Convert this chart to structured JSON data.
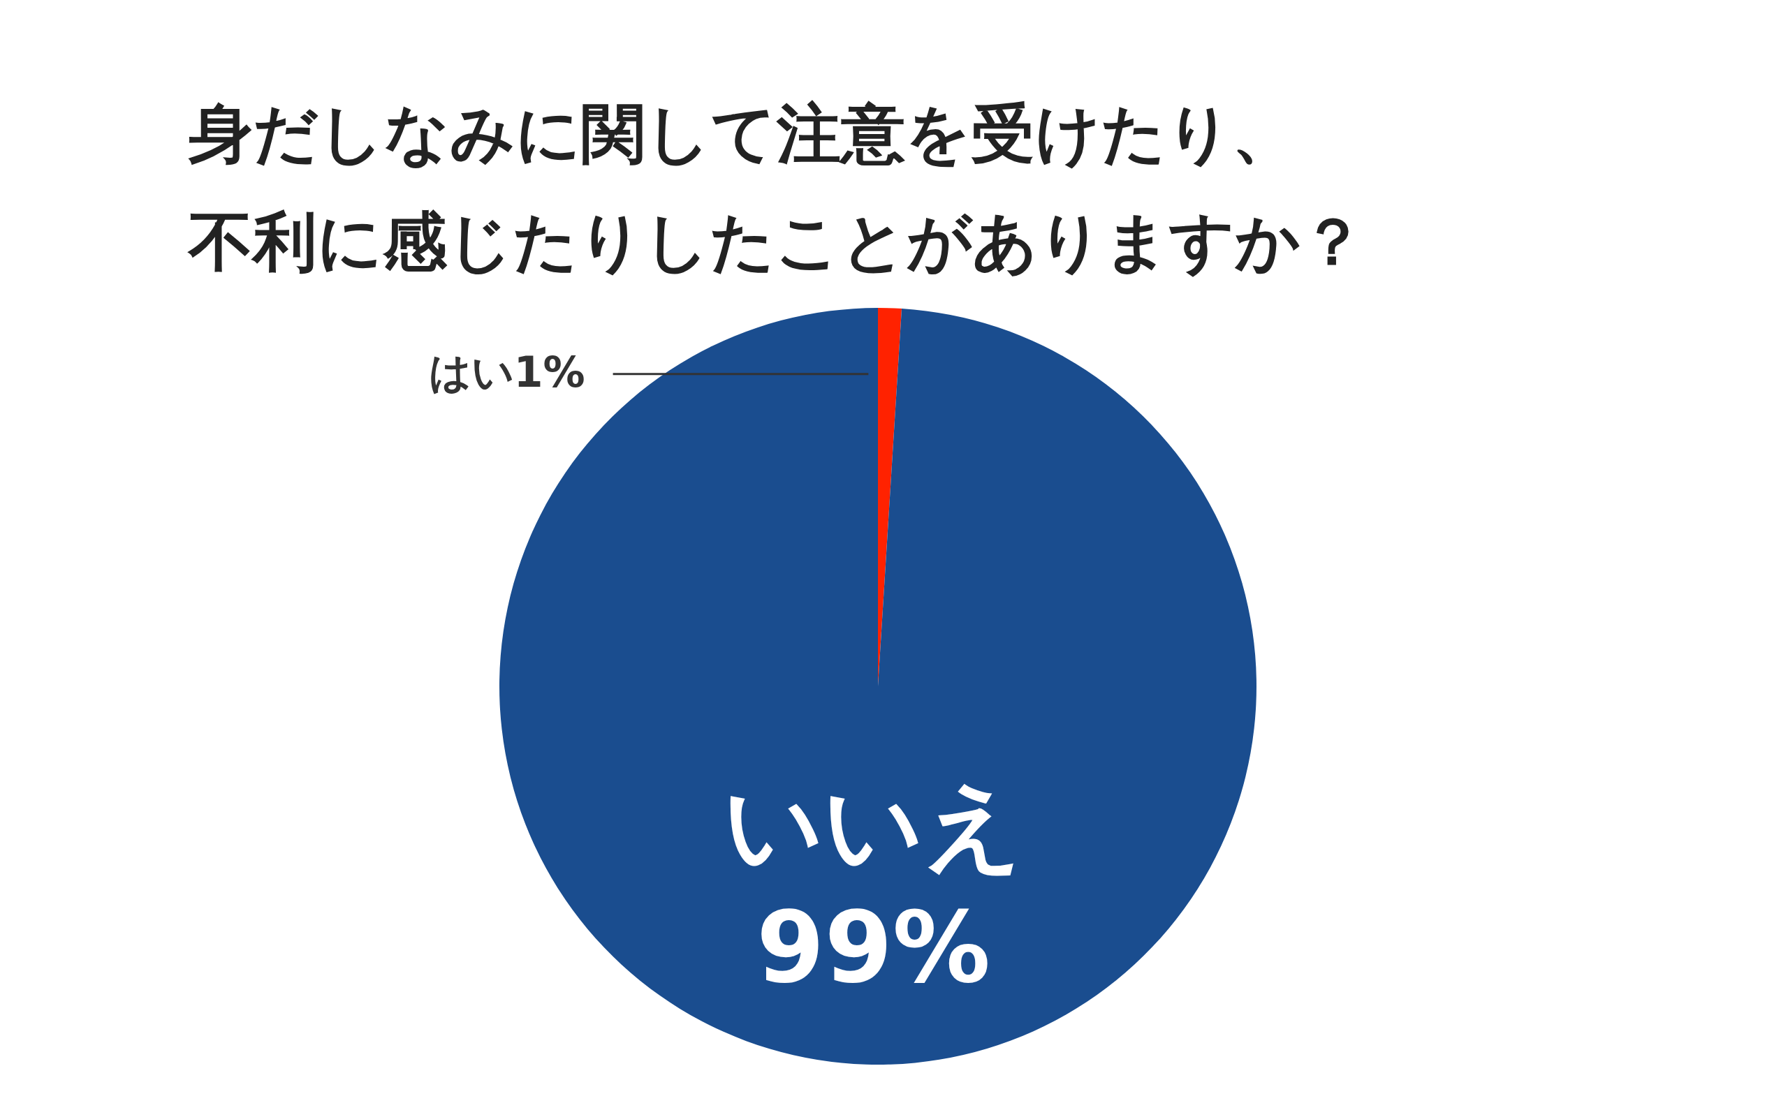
{
  "chart_data": {
    "type": "pie",
    "title": "身だしなみに関して注意を受けたり、不利に感じたりしたことがありますか？",
    "categories": [
      "はい",
      "いいえ"
    ],
    "values": [
      1,
      99
    ],
    "colors": [
      "#ff2200",
      "#1a4d8f"
    ],
    "value_labels": [
      "1%",
      "99%"
    ]
  }
}
